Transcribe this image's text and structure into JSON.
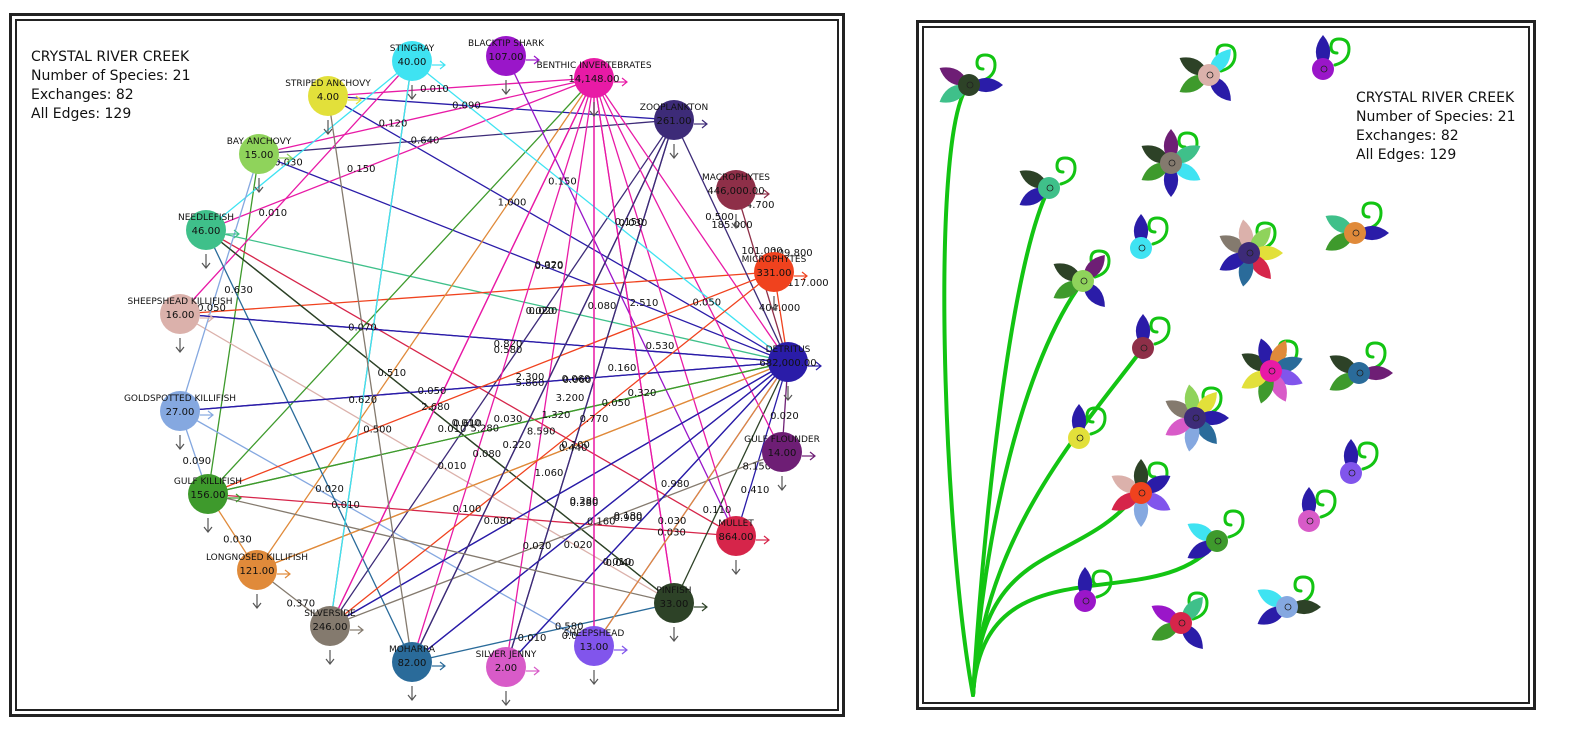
{
  "left_panel": {
    "info": {
      "title": "CRYSTAL RIVER CREEK",
      "species": "Number of Species: 21",
      "exchanges": "Exchanges: 82",
      "edges": "All Edges: 129"
    },
    "nodes": [
      {
        "id": "stingray",
        "name": "STINGRAY",
        "value": "40.00",
        "color": "#3fe3f2"
      },
      {
        "id": "blacktip-shark",
        "name": "BLACKTIP SHARK",
        "value": "107.00",
        "color": "#9a16c9"
      },
      {
        "id": "benthic-invertebrates",
        "name": "BENTHIC INVERTEBRATES",
        "value": "14,148.00",
        "color": "#e81aa6"
      },
      {
        "id": "zooplankton",
        "name": "ZOOPLANKTON",
        "value": "261.00",
        "color": "#3d2b78"
      },
      {
        "id": "macrophytes",
        "name": "MACROPHYTES",
        "value": "446,000.00",
        "color": "#8e2f48"
      },
      {
        "id": "microphytes",
        "name": "MICROPHYTES",
        "value": "331.00",
        "color": "#f0421e"
      },
      {
        "id": "detritus",
        "name": "DETRITUS",
        "value": "682,000.00",
        "color": "#2a1ca8"
      },
      {
        "id": "gulf-flounder",
        "name": "GULF FLOUNDER",
        "value": "14.00",
        "color": "#6e1e75"
      },
      {
        "id": "mullet",
        "name": "MULLET",
        "value": "864.00",
        "color": "#d6254a"
      },
      {
        "id": "pinfish",
        "name": "PINFISH",
        "value": "33.00",
        "color": "#2d4227"
      },
      {
        "id": "sheepshead",
        "name": "SHEEPSHEAD",
        "value": "13.00",
        "color": "#8155ec"
      },
      {
        "id": "silver-jenny",
        "name": "SILVER JENNY",
        "value": "2.00",
        "color": "#d85bc8"
      },
      {
        "id": "moharra",
        "name": "MOHARRA",
        "value": "82.00",
        "color": "#2a6b9a"
      },
      {
        "id": "silverside",
        "name": "SILVERSIDE",
        "value": "246.00",
        "color": "#847a6e"
      },
      {
        "id": "longnosed-killifish",
        "name": "LONGNOSED KILLIFISH",
        "value": "121.00",
        "color": "#e08a3a"
      },
      {
        "id": "gulf-killifish",
        "name": "GULF KILLIFISH",
        "value": "156.00",
        "color": "#3e9a2c"
      },
      {
        "id": "goldspotted-killifish",
        "name": "GOLDSPOTTED KILLIFISH",
        "value": "27.00",
        "color": "#85a8e0"
      },
      {
        "id": "sheepshead-killifish",
        "name": "SHEEPSHEAD KILLIFISH",
        "value": "16.00",
        "color": "#dbb1ab"
      },
      {
        "id": "needlefish",
        "name": "NEEDLEFISH",
        "value": "46.00",
        "color": "#3fc08a"
      },
      {
        "id": "bay-anchovy",
        "name": "BAY ANCHOVY",
        "value": "15.00",
        "color": "#8fd35b"
      },
      {
        "id": "striped-anchovy",
        "name": "STRIPED ANCHOVY",
        "value": "4.00",
        "color": "#e2e03a"
      }
    ],
    "edges": [
      {
        "from": "striped-anchovy",
        "to": "benthic-invertebrates",
        "label": "0.010",
        "color": "#e81aa6"
      },
      {
        "from": "striped-anchovy",
        "to": "zooplankton",
        "label": "0.090",
        "color": "#2a1ca8"
      },
      {
        "from": "striped-anchovy",
        "to": "detritus",
        "label": "1.000",
        "color": "#2a1ca8"
      },
      {
        "from": "bay-anchovy",
        "to": "zooplankton",
        "label": "0.640",
        "color": "#3d2b78"
      },
      {
        "from": "bay-anchovy",
        "to": "benthic-invertebrates",
        "label": "0.120",
        "color": "#e81aa6"
      },
      {
        "from": "bay-anchovy",
        "to": "detritus",
        "label": "",
        "color": "#2a1ca8"
      },
      {
        "from": "bay-anchovy",
        "to": "gulf-killifish",
        "label": "0.630",
        "color": "#3e9a2c"
      },
      {
        "from": "needlefish",
        "to": "stingray",
        "label": "0.030",
        "color": "#3fe3f2"
      },
      {
        "from": "needlefish",
        "to": "benthic-invertebrates",
        "label": "0.150",
        "color": "#e81aa6"
      },
      {
        "from": "needlefish",
        "to": "detritus",
        "label": "",
        "color": "#3fc08a"
      },
      {
        "from": "needlefish",
        "to": "pinfish",
        "label": "",
        "color": "#2d4227"
      },
      {
        "from": "needlefish",
        "to": "mullet",
        "label": "",
        "color": "#d6254a"
      },
      {
        "from": "sheepshead-killifish",
        "to": "stingray",
        "label": "0.010",
        "color": "#e81aa6"
      },
      {
        "from": "sheepshead-killifish",
        "to": "microphytes",
        "label": "",
        "color": "#f0421e"
      },
      {
        "from": "sheepshead-killifish",
        "to": "detritus",
        "label": "",
        "color": "#2a1ca8"
      },
      {
        "from": "sheepshead-killifish",
        "to": "pinfish",
        "label": "0.500",
        "color": "#dbb1ab"
      },
      {
        "from": "goldspotted-killifish",
        "to": "detritus",
        "label": "",
        "color": "#2a1ca8"
      },
      {
        "from": "goldspotted-killifish",
        "to": "bay-anchovy",
        "label": "0.050",
        "color": "#85a8e0"
      },
      {
        "from": "goldspotted-killifish",
        "to": "sheepshead",
        "label": "0.010",
        "color": "#85a8e0"
      },
      {
        "from": "gulf-killifish",
        "to": "benthic-invertebrates",
        "label": "0.070",
        "color": "#3e9a2c"
      },
      {
        "from": "gulf-killifish",
        "to": "detritus",
        "label": "",
        "color": "#3e9a2c"
      },
      {
        "from": "gulf-killifish",
        "to": "mullet",
        "label": "",
        "color": "#d6254a"
      },
      {
        "from": "gulf-killifish",
        "to": "goldspotted-killifish",
        "label": "0.090",
        "color": "#85a8e0"
      },
      {
        "from": "longnosed-killifish",
        "to": "benthic-invertebrates",
        "label": "0.510",
        "color": "#e08a3a"
      },
      {
        "from": "longnosed-killifish",
        "to": "detritus",
        "label": "",
        "color": "#e08a3a"
      },
      {
        "from": "longnosed-killifish",
        "to": "gulf-killifish",
        "label": "0.030",
        "color": "#e08a3a"
      },
      {
        "from": "silverside",
        "to": "zooplankton",
        "label": "0.610",
        "color": "#3d2b78"
      },
      {
        "from": "silverside",
        "to": "benthic-invertebrates",
        "label": "2.680",
        "color": "#e81aa6"
      },
      {
        "from": "silverside",
        "to": "detritus",
        "label": "",
        "color": "#2a1ca8"
      },
      {
        "from": "silverside",
        "to": "stingray",
        "label": "0.620",
        "color": "#847a6e"
      },
      {
        "from": "silverside",
        "to": "longnosed-killifish",
        "label": "0.370",
        "color": "#847a6e"
      },
      {
        "from": "moharra",
        "to": "benthic-invertebrates",
        "label": "5.280",
        "color": "#e81aa6"
      },
      {
        "from": "moharra",
        "to": "detritus",
        "label": "",
        "color": "#2a1ca8"
      },
      {
        "from": "moharra",
        "to": "zooplankton",
        "label": "0.220",
        "color": "#3d2b78"
      },
      {
        "from": "moharra",
        "to": "needlefish",
        "label": "0.020",
        "color": "#2a6b9a"
      },
      {
        "from": "silver-jenny",
        "to": "benthic-invertebrates",
        "label": "8.590",
        "color": "#e81aa6"
      },
      {
        "from": "silver-jenny",
        "to": "detritus",
        "label": "",
        "color": "#2a1ca8"
      },
      {
        "from": "silver-jenny",
        "to": "zooplankton",
        "label": "0.440",
        "color": "#3d2b78"
      },
      {
        "from": "sheepshead",
        "to": "benthic-invertebrates",
        "label": "0.770",
        "color": "#e81aa6"
      },
      {
        "from": "sheepshead",
        "to": "detritus",
        "label": "",
        "color": "#8155ec"
      },
      {
        "from": "pinfish",
        "to": "benthic-invertebrates",
        "label": "0.320",
        "color": "#e81aa6"
      },
      {
        "from": "pinfish",
        "to": "detritus",
        "label": "",
        "color": "#2d4227"
      },
      {
        "from": "pinfish",
        "to": "needlefish",
        "label": "0.080",
        "color": "#2d4227"
      },
      {
        "from": "pinfish",
        "to": "moharra",
        "label": "0.580",
        "color": "#2a6b9a"
      },
      {
        "from": "mullet",
        "to": "benthic-invertebrates",
        "label": "",
        "color": "#e81aa6"
      },
      {
        "from": "mullet",
        "to": "detritus",
        "label": "8.150",
        "color": "#2a1ca8"
      },
      {
        "from": "gulf-flounder",
        "to": "benthic-invertebrates",
        "label": "0.050",
        "color": "#e81aa6"
      },
      {
        "from": "gulf-flounder",
        "to": "detritus",
        "label": "0.020",
        "color": "#6e1e75"
      },
      {
        "from": "gulf-flounder",
        "to": "silverside",
        "label": "0.160",
        "color": "#847a6e"
      },
      {
        "from": "zooplankton",
        "to": "detritus",
        "label": "0.500",
        "color": "#3d2b78"
      },
      {
        "from": "microphytes",
        "to": "detritus",
        "label": "404.000",
        "color": "#f0421e"
      },
      {
        "from": "macrophytes",
        "to": "detritus",
        "label": "",
        "color": "#8e2f48"
      },
      {
        "from": "benthic-invertebrates",
        "to": "detritus",
        "label": "",
        "color": "#e81aa6"
      },
      {
        "from": "blacktip-shark",
        "to": "mullet",
        "label": "",
        "color": "#9a16c9"
      },
      {
        "from": "stingray",
        "to": "detritus",
        "label": "0.150",
        "color": "#3fe3f2"
      },
      {
        "from": "detritus",
        "to": "goldspotted-killifish",
        "label": "",
        "color": "#2a1ca8"
      },
      {
        "from": "detritus",
        "to": "sheepshead-killifish",
        "label": "",
        "color": "#2a1ca8"
      },
      {
        "from": "detritus",
        "to": "gulf-killifish",
        "label": "1.320",
        "color": "#3e9a2c"
      },
      {
        "from": "detritus",
        "to": "silverside",
        "label": "",
        "color": "#2a1ca8"
      },
      {
        "from": "detritus",
        "to": "moharra",
        "label": "",
        "color": "#2a1ca8"
      },
      {
        "from": "detritus",
        "to": "silver-jenny",
        "label": "0.980",
        "color": "#2a1ca8"
      },
      {
        "from": "detritus",
        "to": "longnosed-killifish",
        "label": "0.100",
        "color": "#e08a3a"
      },
      {
        "from": "microphytes",
        "to": "gulf-killifish",
        "label": "",
        "color": "#f0421e"
      },
      {
        "from": "microphytes",
        "to": "silverside",
        "label": "",
        "color": "#f0421e"
      },
      {
        "from": "zooplankton",
        "to": "moharra",
        "label": "",
        "color": "#3d2b78"
      },
      {
        "from": "zooplankton",
        "to": "silver-jenny",
        "label": "",
        "color": "#3d2b78"
      },
      {
        "from": "benthic-invertebrates",
        "to": "silverside",
        "label": "",
        "color": "#e81aa6"
      },
      {
        "from": "benthic-invertebrates",
        "to": "sheepshead",
        "label": "",
        "color": "#e81aa6"
      },
      {
        "from": "benthic-invertebrates",
        "to": "pinfish",
        "label": "",
        "color": "#e81aa6"
      },
      {
        "from": "stingray",
        "to": "silverside",
        "label": "",
        "color": "#3fe3f2"
      },
      {
        "from": "striped-anchovy",
        "to": "moharra",
        "label": "",
        "color": "#847a6e"
      },
      {
        "from": "pinfish",
        "to": "gulf-killifish",
        "label": "",
        "color": "#847a6e"
      },
      {
        "from": "sheepshead",
        "to": "detritus",
        "label": "0.030",
        "color": "#e08a3a"
      }
    ],
    "floating_labels": [
      "0.050",
      "0.060",
      "2.300",
      "5.860",
      "3.200",
      "0.150",
      "2.510",
      "0.530",
      "0.080",
      "0.050",
      "0.370",
      "0.020",
      "0.820",
      "0.580",
      "0.030",
      "0.010",
      "0.020",
      "0.030",
      "0.160",
      "0.410",
      "0.110",
      "0.280",
      "0.900",
      "0.080",
      "0.010",
      "0.020",
      "0.040",
      "0.010",
      "0.010",
      "1.060",
      "0.380",
      "0.030",
      "0.020",
      "0.020",
      "0.060",
      "0.180",
      "44.700",
      "185.000",
      "101.000",
      "109.800",
      "117.000",
      "0.100",
      "0.010",
      "0.010"
    ]
  },
  "right_panel": {
    "info": {
      "title": "CRYSTAL RIVER CREEK",
      "species": "Number of Species: 21",
      "exchanges": "Exchanges: 82",
      "edges": "All Edges: 129"
    },
    "stem_color": "#13c413",
    "flowers": [
      {
        "center": "#2d4227",
        "petals": [
          "#6e1e75",
          "#2a1ca8",
          "#3fc08a"
        ]
      },
      {
        "center": "#dbb1ab",
        "petals": [
          "#2d4227",
          "#3fe3f2",
          "#2a1ca8",
          "#3e9a2c"
        ]
      },
      {
        "center": "#9a16c9",
        "petals": [
          "#2a1ca8"
        ]
      },
      {
        "center": "#847a6e",
        "petals": [
          "#2d4227",
          "#6e1e75",
          "#3fc08a",
          "#3fe3f2",
          "#2a1ca8",
          "#3e9a2c"
        ]
      },
      {
        "center": "#3fc08a",
        "petals": [
          "#2d4227",
          "#2a1ca8"
        ]
      },
      {
        "center": "#3fe3f2",
        "petals": [
          "#2a1ca8"
        ]
      },
      {
        "center": "#3d2b78",
        "petals": [
          "#847a6e",
          "#dbb1ab",
          "#8fd35b",
          "#e2e03a",
          "#d6254a",
          "#2a6b9a",
          "#2a1ca8"
        ]
      },
      {
        "center": "#e08a3a",
        "petals": [
          "#3fc08a",
          "#2a1ca8",
          "#3e9a2c"
        ]
      },
      {
        "center": "#8fd35b",
        "petals": [
          "#2d4227",
          "#6e1e75",
          "#2a1ca8",
          "#3e9a2c"
        ]
      },
      {
        "center": "#8e2f48",
        "petals": [
          "#2a1ca8"
        ]
      },
      {
        "center": "#e81aa6",
        "petals": [
          "#2d4227",
          "#2a1ca8",
          "#e08a3a",
          "#2a6b9a",
          "#8155ec",
          "#d85bc8",
          "#3e9a2c",
          "#e2e03a"
        ]
      },
      {
        "center": "#2a6b9a",
        "petals": [
          "#2d4227",
          "#6e1e75",
          "#3e9a2c"
        ]
      },
      {
        "center": "#3d2b78",
        "petals": [
          "#847a6e",
          "#8fd35b",
          "#e2e03a",
          "#2a1ca8",
          "#2a6b9a",
          "#85a8e0",
          "#d85bc8"
        ]
      },
      {
        "center": "#e2e03a",
        "petals": [
          "#2a1ca8"
        ]
      },
      {
        "center": "#8155ec",
        "petals": [
          "#2a1ca8"
        ]
      },
      {
        "center": "#f0421e",
        "petals": [
          "#dbb1ab",
          "#2d4227",
          "#2a1ca8",
          "#8155ec",
          "#85a8e0",
          "#d6254a"
        ]
      },
      {
        "center": "#3e9a2c",
        "petals": [
          "#3fe3f2",
          "#2a1ca8"
        ]
      },
      {
        "center": "#d85bc8",
        "petals": [
          "#2a1ca8"
        ]
      },
      {
        "center": "#9a16c9",
        "petals": [
          "#2a1ca8"
        ]
      },
      {
        "center": "#d6254a",
        "petals": [
          "#9a16c9",
          "#3fc08a",
          "#2a1ca8",
          "#3e9a2c"
        ]
      },
      {
        "center": "#85a8e0",
        "petals": [
          "#3fe3f2",
          "#2d4227",
          "#2a1ca8"
        ]
      }
    ]
  }
}
